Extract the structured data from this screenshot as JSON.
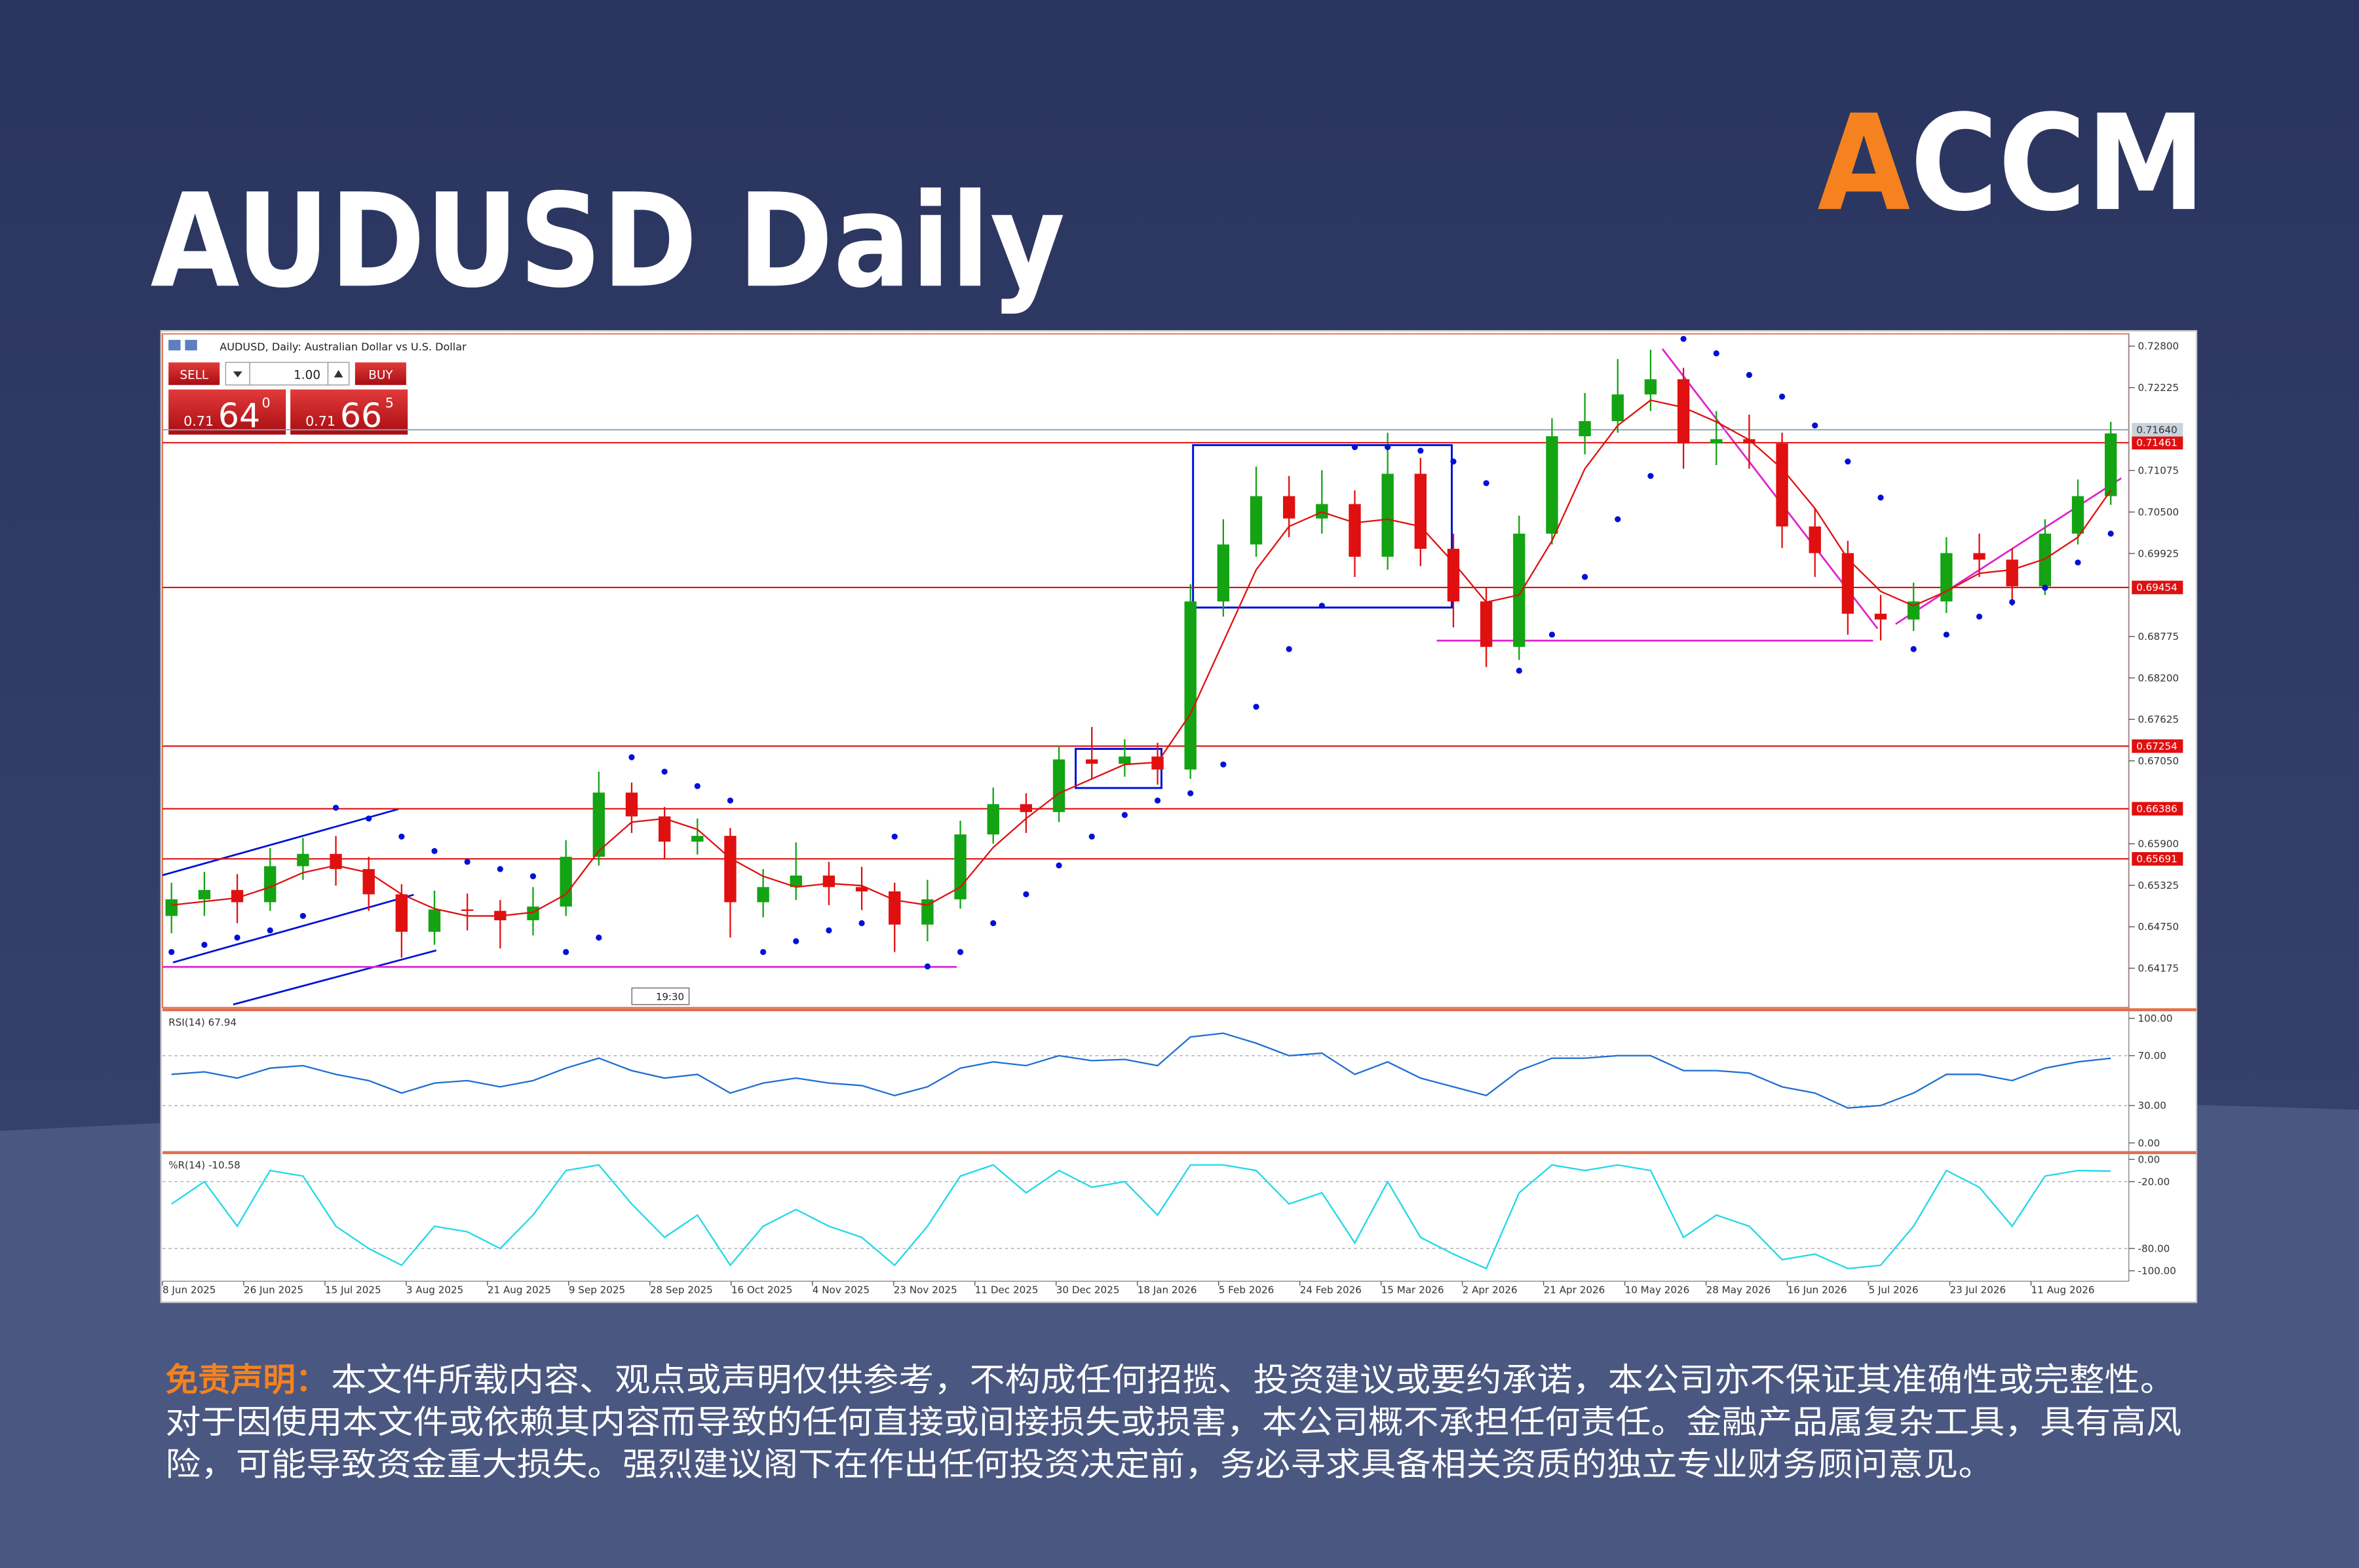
{
  "header": {
    "title": "AUDUSD Daily",
    "logo": "ACCM"
  },
  "chart_data": {
    "type": "candlestick",
    "title": "AUDUSD, Daily: Australian Dollar vs U.S. Dollar",
    "date_labels": [
      "8 Jun 2025",
      "26 Jun 2025",
      "15 Jul 2025",
      "3 Aug 2025",
      "21 Aug 2025",
      "9 Sep 2025",
      "28 Sep 2025",
      "16 Oct 2025",
      "4 Nov 2025",
      "23 Nov 2025",
      "11 Dec 2025",
      "30 Dec 2025",
      "18 Jan 2026",
      "5 Feb 2026",
      "24 Feb 2026",
      "15 Mar 2026",
      "2 Apr 2026",
      "21 Apr 2026",
      "10 May 2026",
      "28 May 2026",
      "16 Jun 2026",
      "5 Jul 2026",
      "23 Jul 2026",
      "11 Aug 2026"
    ],
    "open": [
      0.649,
      0.6513,
      0.6526,
      0.6509,
      0.6559,
      0.6576,
      0.6555,
      0.652,
      0.6468,
      0.6499,
      0.6497,
      0.6484,
      0.6503,
      0.6572,
      0.6661,
      0.6628,
      0.6593,
      0.6601,
      0.6509,
      0.653,
      0.6546,
      0.653,
      0.6524,
      0.6478,
      0.6513,
      0.6603,
      0.6645,
      0.6634,
      0.6707,
      0.6701,
      0.6711,
      0.6693,
      0.6926,
      0.7005,
      0.7072,
      0.7041,
      0.7061,
      0.6988,
      0.7103,
      0.6999,
      0.6926,
      0.6863,
      0.702,
      0.7155,
      0.7176,
      0.7213,
      0.7234,
      0.7145,
      0.7151,
      0.7145,
      0.703,
      0.6993,
      0.6909,
      0.6901,
      0.6926,
      0.6993,
      0.6984,
      0.6947,
      0.702,
      0.7072
    ],
    "high": [
      0.6536,
      0.6551,
      0.6548,
      0.6584,
      0.6598,
      0.6601,
      0.6572,
      0.6534,
      0.6525,
      0.6521,
      0.6512,
      0.653,
      0.6595,
      0.669,
      0.6675,
      0.6641,
      0.6625,
      0.6612,
      0.6555,
      0.6592,
      0.6565,
      0.6558,
      0.6536,
      0.654,
      0.6622,
      0.6668,
      0.666,
      0.6726,
      0.6752,
      0.6735,
      0.673,
      0.695,
      0.704,
      0.7113,
      0.71,
      0.7108,
      0.708,
      0.716,
      0.7125,
      0.702,
      0.6945,
      0.7045,
      0.718,
      0.7215,
      0.7262,
      0.7275,
      0.725,
      0.719,
      0.7185,
      0.716,
      0.7055,
      0.701,
      0.6935,
      0.6952,
      0.7015,
      0.702,
      0.7,
      0.704,
      0.7095,
      0.7175
    ],
    "low": [
      0.6466,
      0.649,
      0.648,
      0.6497,
      0.654,
      0.6532,
      0.6497,
      0.6432,
      0.645,
      0.647,
      0.6445,
      0.6463,
      0.649,
      0.656,
      0.6605,
      0.657,
      0.6575,
      0.646,
      0.6488,
      0.6512,
      0.6505,
      0.6498,
      0.644,
      0.6455,
      0.65,
      0.659,
      0.6605,
      0.662,
      0.668,
      0.6683,
      0.6672,
      0.668,
      0.6905,
      0.6988,
      0.7015,
      0.702,
      0.696,
      0.697,
      0.6975,
      0.689,
      0.6835,
      0.6845,
      0.7005,
      0.713,
      0.716,
      0.719,
      0.711,
      0.7115,
      0.711,
      0.7,
      0.696,
      0.688,
      0.6872,
      0.6885,
      0.691,
      0.696,
      0.692,
      0.6935,
      0.7005,
      0.706
    ],
    "close": [
      0.6513,
      0.6526,
      0.6509,
      0.6559,
      0.6576,
      0.6555,
      0.652,
      0.6468,
      0.6499,
      0.6497,
      0.6484,
      0.6503,
      0.6572,
      0.6661,
      0.6628,
      0.6593,
      0.6601,
      0.6509,
      0.653,
      0.6546,
      0.653,
      0.6524,
      0.6478,
      0.6513,
      0.6603,
      0.6645,
      0.6634,
      0.6707,
      0.6701,
      0.6711,
      0.6693,
      0.6926,
      0.7005,
      0.7072,
      0.7041,
      0.7061,
      0.6988,
      0.7103,
      0.6999,
      0.6926,
      0.6863,
      0.702,
      0.7155,
      0.7176,
      0.7213,
      0.7234,
      0.7145,
      0.7151,
      0.7145,
      0.703,
      0.6993,
      0.6909,
      0.6901,
      0.6926,
      0.6993,
      0.6984,
      0.6947,
      0.702,
      0.7072,
      0.7159
    ],
    "colors": {
      "up": "#13a313",
      "down": "#e01010"
    },
    "ma": {
      "color": "#e01010",
      "values": [
        0.6505,
        0.651,
        0.6515,
        0.653,
        0.655,
        0.656,
        0.655,
        0.652,
        0.65,
        0.649,
        0.649,
        0.6495,
        0.652,
        0.658,
        0.662,
        0.6625,
        0.661,
        0.657,
        0.6545,
        0.653,
        0.6535,
        0.6532,
        0.6512,
        0.6505,
        0.653,
        0.6585,
        0.6625,
        0.666,
        0.668,
        0.67,
        0.6703,
        0.677,
        0.687,
        0.697,
        0.703,
        0.705,
        0.7035,
        0.704,
        0.703,
        0.698,
        0.6925,
        0.6935,
        0.701,
        0.711,
        0.717,
        0.7205,
        0.7195,
        0.7175,
        0.715,
        0.711,
        0.7055,
        0.6985,
        0.694,
        0.692,
        0.694,
        0.6965,
        0.697,
        0.6985,
        0.7015,
        0.708
      ]
    },
    "sar": {
      "color": "#0010d8",
      "values": [
        0.644,
        0.645,
        0.646,
        0.647,
        0.649,
        0.664,
        0.6625,
        0.66,
        0.658,
        0.6565,
        0.6555,
        0.6545,
        0.644,
        0.646,
        0.671,
        0.669,
        0.667,
        0.665,
        0.644,
        0.6455,
        0.647,
        0.648,
        0.66,
        0.642,
        0.644,
        0.648,
        0.652,
        0.656,
        0.66,
        0.663,
        0.665,
        0.666,
        0.67,
        0.678,
        0.686,
        0.692,
        0.714,
        0.714,
        0.7135,
        0.712,
        0.709,
        0.683,
        0.688,
        0.696,
        0.704,
        0.71,
        0.729,
        0.727,
        0.724,
        0.721,
        0.717,
        0.712,
        0.707,
        0.686,
        0.688,
        0.6905,
        0.6925,
        0.6945,
        0.698,
        0.702
      ]
    },
    "ylim": [
      0.6363,
      0.7297
    ],
    "yticks": [
      {
        "value": 0.728,
        "label": "0.72800"
      },
      {
        "value": 0.72225,
        "label": "0.72225"
      },
      {
        "value": 0.71075,
        "label": "0.71075"
      },
      {
        "value": 0.705,
        "label": "0.70500"
      },
      {
        "value": 0.69925,
        "label": "0.69925"
      },
      {
        "value": 0.68775,
        "label": "0.68775"
      },
      {
        "value": 0.682,
        "label": "0.68200"
      },
      {
        "value": 0.67625,
        "label": "0.67625"
      },
      {
        "value": 0.6705,
        "label": "0.67050"
      },
      {
        "value": 0.659,
        "label": "0.65900"
      },
      {
        "value": 0.65325,
        "label": "0.65325"
      },
      {
        "value": 0.6475,
        "label": "0.64750"
      },
      {
        "value": 0.64175,
        "label": "0.64175"
      }
    ],
    "levels": [
      0.71461,
      0.69454,
      0.67254,
      0.66386,
      0.65691
    ],
    "level_color": "#e01010",
    "current_price": {
      "value": 0.7164,
      "label": "0.71640"
    },
    "trade_panel": {
      "sell": "SELL",
      "buy": "BUY",
      "lot": "1.00",
      "bid_prefix": "0.71",
      "bid_main": "64",
      "bid_sup": "0",
      "ask_prefix": "0.71",
      "ask_main": "66",
      "ask_sup": "5"
    },
    "time_label": "19:30",
    "indicators": [
      {
        "type": "line",
        "title": "RSI(14) 67.94",
        "color": "#1f6fd0",
        "ylim": [
          -6,
          105
        ],
        "yticks": [
          {
            "value": 100,
            "label": "100.00"
          },
          {
            "value": 70,
            "label": "70.00"
          },
          {
            "value": 30,
            "label": "30.00"
          },
          {
            "value": 0,
            "label": "0.00"
          }
        ],
        "levels": [
          70,
          30
        ],
        "values": [
          55,
          57,
          52,
          60,
          62,
          55,
          50,
          40,
          48,
          50,
          45,
          50,
          60,
          68,
          58,
          52,
          55,
          40,
          48,
          52,
          48,
          46,
          38,
          45,
          60,
          65,
          62,
          70,
          66,
          67,
          62,
          85,
          88,
          80,
          70,
          72,
          55,
          65,
          52,
          45,
          38,
          58,
          68,
          68,
          70,
          70,
          58,
          58,
          56,
          45,
          40,
          28,
          30,
          40,
          55,
          55,
          50,
          60,
          65,
          67.94
        ]
      },
      {
        "type": "line",
        "title": "%R(14) -10.58",
        "color": "#20d8e8",
        "ylim": [
          -108,
          4
        ],
        "yticks": [
          {
            "value": 0,
            "label": "0.00"
          },
          {
            "value": -20,
            "label": "-20.00"
          },
          {
            "value": -80,
            "label": "-80.00"
          },
          {
            "value": -100,
            "label": "-100.00"
          }
        ],
        "levels": [
          -20,
          -80
        ],
        "values": [
          -40,
          -20,
          -60,
          -10,
          -15,
          -60,
          -80,
          -95,
          -60,
          -65,
          -80,
          -50,
          -10,
          -5,
          -40,
          -70,
          -50,
          -95,
          -60,
          -45,
          -60,
          -70,
          -95,
          -60,
          -15,
          -5,
          -30,
          -10,
          -25,
          -20,
          -50,
          -5,
          -5,
          -10,
          -40,
          -30,
          -75,
          -20,
          -70,
          -85,
          -98,
          -30,
          -5,
          -10,
          -5,
          -10,
          -70,
          -50,
          -60,
          -90,
          -85,
          -98,
          -95,
          -60,
          -10,
          -25,
          -60,
          -15,
          -10,
          -10.58
        ]
      }
    ]
  },
  "disclaimer": {
    "label": "免责声明：",
    "lines": [
      "本文件所载内容、观点或声明仅供参考，不构成任何招揽、投资建议或要约承诺，本公司亦不保证其准确性或完整性。",
      "对于因使用本文件或依赖其内容而导致的任何直接或间接损失或损害，本公司概不承担任何责任。金融产品属复杂工具，具有高风",
      "险，可能导致资金重大损失。强烈建议阁下在作出任何投资决定前，务必寻求具备相关资质的独立专业财务顾问意见。"
    ]
  }
}
